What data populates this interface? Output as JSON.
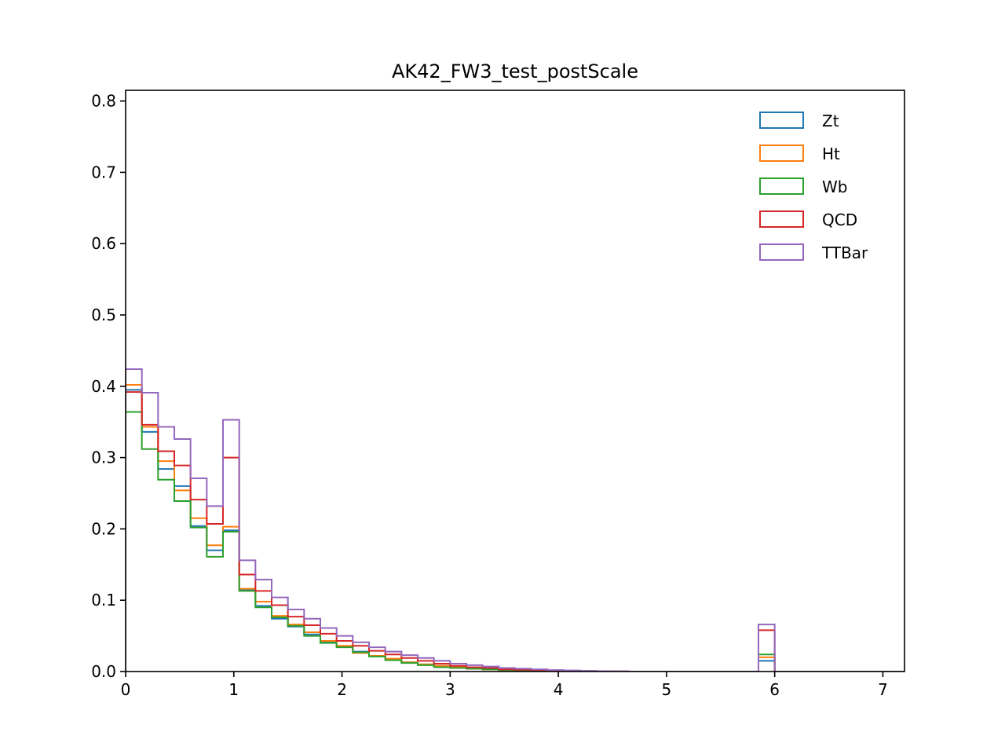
{
  "chart_data": {
    "type": "histogram-step",
    "title": "AK42_FW3_test_postScale",
    "xlabel": "",
    "ylabel": "",
    "xlim": [
      0,
      7.2
    ],
    "ylim": [
      0,
      0.815
    ],
    "xticks": [
      "0",
      "1",
      "2",
      "3",
      "4",
      "5",
      "6",
      "7"
    ],
    "yticks": [
      "0.0",
      "0.1",
      "0.2",
      "0.3",
      "0.4",
      "0.5",
      "0.6",
      "0.7",
      "0.8"
    ],
    "bin_width": 0.15,
    "grid": false,
    "legend_position": "top-right",
    "series": [
      {
        "name": "Zt",
        "color": "#1f77b4",
        "values": [
          0.395,
          0.336,
          0.284,
          0.26,
          0.204,
          0.17,
          0.198,
          0.114,
          0.092,
          0.074,
          0.063,
          0.052,
          0.042,
          0.035,
          0.028,
          0.022,
          0.017,
          0.013,
          0.01,
          0.008,
          0.006,
          0.004,
          0.003,
          0.002,
          0.0015,
          0.001,
          0.0008,
          0.0005,
          0.0003,
          0.0002,
          0.0001,
          0,
          0,
          0,
          0,
          0,
          0,
          0,
          0,
          0.015,
          0,
          0,
          0,
          0,
          0,
          0,
          0,
          0
        ]
      },
      {
        "name": "Ht",
        "color": "#ff7f0e",
        "values": [
          0.402,
          0.343,
          0.295,
          0.254,
          0.215,
          0.177,
          0.203,
          0.116,
          0.098,
          0.078,
          0.066,
          0.055,
          0.043,
          0.036,
          0.026,
          0.022,
          0.018,
          0.013,
          0.01,
          0.008,
          0.006,
          0.004,
          0.003,
          0.002,
          0.0015,
          0.001,
          0.0008,
          0.0005,
          0.0003,
          0.0002,
          0.0001,
          0,
          0,
          0,
          0,
          0,
          0,
          0,
          0,
          0.02,
          0,
          0,
          0,
          0,
          0,
          0,
          0,
          0
        ]
      },
      {
        "name": "Wb",
        "color": "#2ca02c",
        "values": [
          0.364,
          0.312,
          0.269,
          0.239,
          0.202,
          0.161,
          0.196,
          0.113,
          0.09,
          0.076,
          0.064,
          0.05,
          0.04,
          0.034,
          0.027,
          0.021,
          0.016,
          0.012,
          0.009,
          0.006,
          0.005,
          0.004,
          0.003,
          0.002,
          0.0015,
          0.001,
          0.0008,
          0.0005,
          0.0003,
          0.0002,
          0.0001,
          0,
          0,
          0,
          0,
          0,
          0,
          0,
          0,
          0.024,
          0,
          0,
          0,
          0,
          0,
          0,
          0,
          0
        ]
      },
      {
        "name": "QCD",
        "color": "#d62728",
        "values": [
          0.392,
          0.346,
          0.309,
          0.289,
          0.241,
          0.207,
          0.3,
          0.136,
          0.113,
          0.093,
          0.077,
          0.065,
          0.053,
          0.043,
          0.036,
          0.029,
          0.024,
          0.019,
          0.015,
          0.011,
          0.008,
          0.006,
          0.005,
          0.003,
          0.0025,
          0.002,
          0.0015,
          0.001,
          0.0006,
          0.0004,
          0.0002,
          0,
          0,
          0,
          0,
          0,
          0,
          0,
          0,
          0.058,
          0,
          0,
          0,
          0,
          0,
          0,
          0,
          0
        ]
      },
      {
        "name": "TTBar",
        "color": "#9467bd",
        "values": [
          0.424,
          0.391,
          0.343,
          0.326,
          0.271,
          0.232,
          0.353,
          0.156,
          0.129,
          0.104,
          0.087,
          0.074,
          0.061,
          0.05,
          0.041,
          0.034,
          0.028,
          0.023,
          0.019,
          0.015,
          0.011,
          0.009,
          0.007,
          0.005,
          0.004,
          0.003,
          0.002,
          0.0015,
          0.001,
          0.0006,
          0.0003,
          0,
          0,
          0,
          0,
          0,
          0,
          0,
          0,
          0.066,
          0,
          0,
          0,
          0,
          0,
          0,
          0,
          0
        ]
      }
    ]
  }
}
